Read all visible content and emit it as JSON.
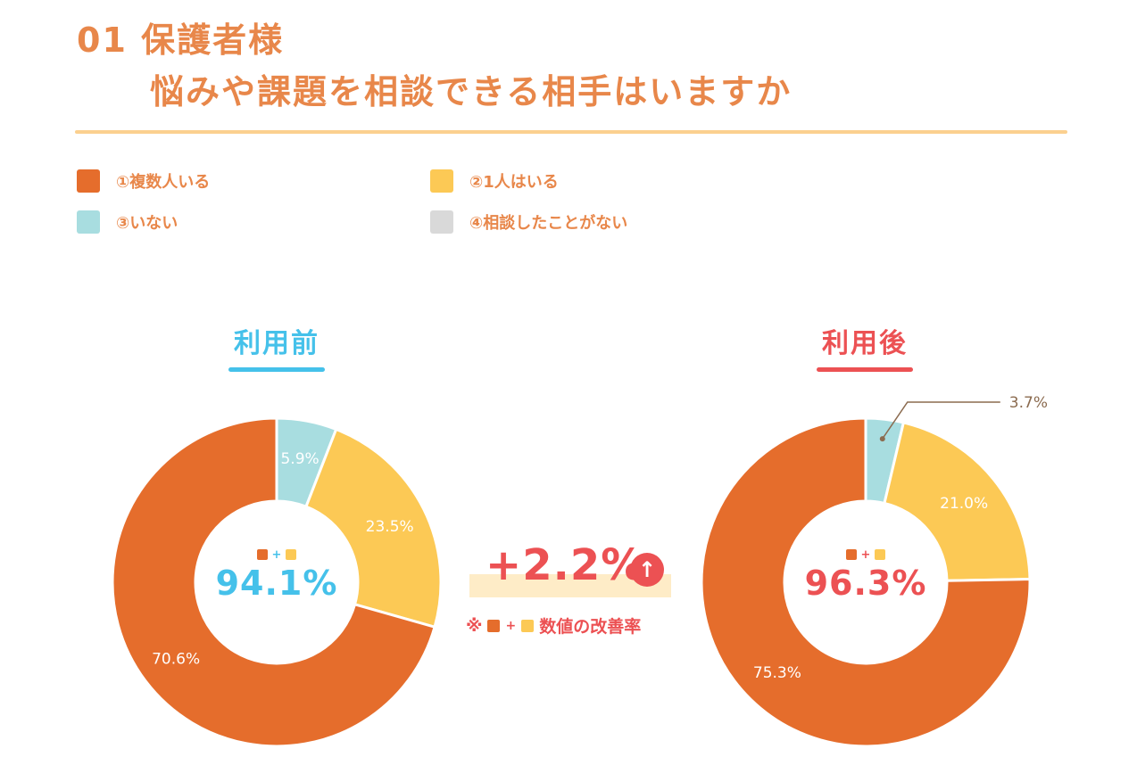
{
  "header": {
    "title_line1": "01 保護者様",
    "title_line2": "悩みや課題を相談できる相手はいますか"
  },
  "colors": {
    "accent": "#e8874a",
    "multiple": "#e56d2c",
    "one": "#fcc955",
    "none": "#a8dde0",
    "never": "#d9d9d9",
    "before": "#45c1ea",
    "after": "#ec5153"
  },
  "legend": [
    {
      "label": "①複数人いる",
      "color": "#e56d2c"
    },
    {
      "label": "②1人はいる",
      "color": "#fcc955"
    },
    {
      "label": "③いない",
      "color": "#a8dde0"
    },
    {
      "label": "④相談したことがない",
      "color": "#d9d9d9"
    }
  ],
  "chart_data": [
    {
      "type": "pie",
      "title": "利用前",
      "categories": [
        "①複数人いる",
        "②1人はいる",
        "③いない"
      ],
      "values": [
        70.6,
        23.5,
        5.9
      ],
      "labels": [
        "70.6%",
        "23.5%",
        "5.9%"
      ],
      "center_value": "94.1%",
      "center_plus": "+",
      "donut": true
    },
    {
      "type": "pie",
      "title": "利用後",
      "categories": [
        "①複数人いる",
        "②1人はいる",
        "③いない"
      ],
      "values": [
        75.3,
        21.0,
        3.7
      ],
      "labels": [
        "75.3%",
        "21.0%",
        "3.7%"
      ],
      "center_value": "96.3%",
      "center_plus": "+",
      "donut": true
    }
  ],
  "improvement": {
    "value": "+2.2%",
    "arrow": "↑",
    "note_prefix": "※",
    "note_plus": "+",
    "note_text": "数値の改善率"
  }
}
